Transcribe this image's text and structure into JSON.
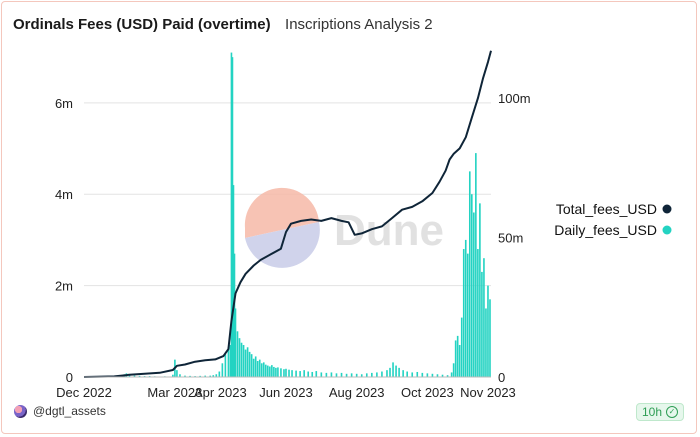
{
  "title": "Ordinals Fees (USD) Paid (overtime)",
  "subtitle": "Inscriptions Analysis 2",
  "user": "@dgtl_assets",
  "refresh": "10h",
  "watermark": "Dune",
  "colors": {
    "total": "#0f2538",
    "daily": "#23d3c2",
    "border": "#f4c7bd",
    "grid": "#e3e3e3",
    "watermark_circle_top": "#f6b9a8",
    "watermark_circle_bottom": "#c8cce8"
  },
  "chart_data": {
    "type": "bar+line",
    "x_tick_labels": [
      "Dec 2022",
      "Mar 2023",
      "Apr 2023",
      "Jun 2023",
      "Aug 2023",
      "Oct 2023",
      "Nov 2023"
    ],
    "x_tick_days": [
      0,
      90,
      135,
      200,
      270,
      340,
      400
    ],
    "x_range_days": [
      0,
      403
    ],
    "left_axis": {
      "ticks": [
        "0",
        "2m",
        "4m",
        "6m"
      ],
      "tick_values": [
        0,
        2000000,
        4000000,
        6000000
      ],
      "range": [
        0,
        7200000
      ]
    },
    "right_axis": {
      "ticks": [
        "0",
        "50m",
        "100m"
      ],
      "tick_values": [
        0,
        50000000,
        100000000
      ],
      "range": [
        0,
        118000000
      ]
    },
    "legend": [
      {
        "name": "Total_fees_USD",
        "color": "#0f2538"
      },
      {
        "name": "Daily_fees_USD",
        "color": "#23d3c2"
      }
    ],
    "series": [
      {
        "name": "Daily_fees_USD",
        "kind": "bar",
        "axis": "left",
        "points": [
          [
            30,
            20000
          ],
          [
            35,
            30000
          ],
          [
            40,
            60000
          ],
          [
            42,
            80000
          ],
          [
            45,
            40000
          ],
          [
            50,
            30000
          ],
          [
            55,
            25000
          ],
          [
            60,
            20000
          ],
          [
            65,
            20000
          ],
          [
            70,
            15000
          ],
          [
            80,
            15000
          ],
          [
            88,
            50000
          ],
          [
            90,
            380000
          ],
          [
            92,
            150000
          ],
          [
            95,
            60000
          ],
          [
            100,
            30000
          ],
          [
            105,
            25000
          ],
          [
            110,
            20000
          ],
          [
            115,
            25000
          ],
          [
            120,
            30000
          ],
          [
            125,
            30000
          ],
          [
            128,
            40000
          ],
          [
            131,
            60000
          ],
          [
            134,
            120000
          ],
          [
            137,
            300000
          ],
          [
            140,
            500000
          ],
          [
            143,
            650000
          ],
          [
            145,
            700000
          ],
          [
            146,
            7100000
          ],
          [
            147,
            7000000
          ],
          [
            148,
            4200000
          ],
          [
            149,
            2700000
          ],
          [
            150,
            1500000
          ],
          [
            152,
            1000000
          ],
          [
            154,
            850000
          ],
          [
            156,
            750000
          ],
          [
            158,
            700000
          ],
          [
            160,
            600000
          ],
          [
            162,
            650000
          ],
          [
            164,
            550000
          ],
          [
            166,
            500000
          ],
          [
            168,
            400000
          ],
          [
            170,
            450000
          ],
          [
            172,
            350000
          ],
          [
            174,
            380000
          ],
          [
            176,
            300000
          ],
          [
            178,
            320000
          ],
          [
            180,
            270000
          ],
          [
            182,
            250000
          ],
          [
            184,
            230000
          ],
          [
            186,
            260000
          ],
          [
            188,
            220000
          ],
          [
            190,
            200000
          ],
          [
            192,
            210000
          ],
          [
            195,
            190000
          ],
          [
            198,
            170000
          ],
          [
            200,
            180000
          ],
          [
            203,
            160000
          ],
          [
            206,
            150000
          ],
          [
            210,
            140000
          ],
          [
            214,
            130000
          ],
          [
            218,
            150000
          ],
          [
            222,
            120000
          ],
          [
            226,
            110000
          ],
          [
            230,
            130000
          ],
          [
            235,
            100000
          ],
          [
            240,
            90000
          ],
          [
            245,
            100000
          ],
          [
            250,
            80000
          ],
          [
            255,
            90000
          ],
          [
            260,
            70000
          ],
          [
            265,
            80000
          ],
          [
            270,
            70000
          ],
          [
            275,
            60000
          ],
          [
            280,
            80000
          ],
          [
            285,
            90000
          ],
          [
            290,
            100000
          ],
          [
            295,
            120000
          ],
          [
            300,
            150000
          ],
          [
            303,
            200000
          ],
          [
            306,
            320000
          ],
          [
            309,
            250000
          ],
          [
            312,
            200000
          ],
          [
            316,
            150000
          ],
          [
            320,
            120000
          ],
          [
            325,
            100000
          ],
          [
            330,
            110000
          ],
          [
            335,
            90000
          ],
          [
            340,
            80000
          ],
          [
            345,
            70000
          ],
          [
            350,
            60000
          ],
          [
            355,
            50000
          ],
          [
            360,
            40000
          ],
          [
            364,
            100000
          ],
          [
            366,
            300000
          ],
          [
            368,
            800000
          ],
          [
            370,
            900000
          ],
          [
            372,
            700000
          ],
          [
            374,
            1300000
          ],
          [
            376,
            2800000
          ],
          [
            378,
            3000000
          ],
          [
            380,
            2700000
          ],
          [
            382,
            4500000
          ],
          [
            384,
            4000000
          ],
          [
            386,
            3600000
          ],
          [
            388,
            4900000
          ],
          [
            390,
            2800000
          ],
          [
            392,
            3800000
          ],
          [
            394,
            2300000
          ],
          [
            396,
            2600000
          ],
          [
            398,
            1500000
          ],
          [
            400,
            2000000
          ],
          [
            402,
            1700000
          ]
        ]
      },
      {
        "name": "Total_fees_USD",
        "kind": "line",
        "axis": "right",
        "points": [
          [
            0,
            0
          ],
          [
            30,
            200000
          ],
          [
            45,
            800000
          ],
          [
            60,
            1200000
          ],
          [
            75,
            1500000
          ],
          [
            88,
            2500000
          ],
          [
            92,
            4000000
          ],
          [
            100,
            4500000
          ],
          [
            110,
            5500000
          ],
          [
            120,
            6000000
          ],
          [
            130,
            6300000
          ],
          [
            138,
            7500000
          ],
          [
            143,
            10000000
          ],
          [
            146,
            20000000
          ],
          [
            150,
            30000000
          ],
          [
            155,
            34000000
          ],
          [
            160,
            37000000
          ],
          [
            168,
            40000000
          ],
          [
            175,
            42000000
          ],
          [
            185,
            44000000
          ],
          [
            195,
            46000000
          ],
          [
            200,
            52000000
          ],
          [
            205,
            55000000
          ],
          [
            215,
            56000000
          ],
          [
            225,
            56500000
          ],
          [
            235,
            56000000
          ],
          [
            245,
            57000000
          ],
          [
            255,
            56000000
          ],
          [
            262,
            55500000
          ],
          [
            268,
            51000000
          ],
          [
            275,
            51500000
          ],
          [
            285,
            53000000
          ],
          [
            295,
            54000000
          ],
          [
            305,
            57000000
          ],
          [
            315,
            60000000
          ],
          [
            325,
            61000000
          ],
          [
            335,
            63000000
          ],
          [
            345,
            66000000
          ],
          [
            352,
            70000000
          ],
          [
            358,
            74000000
          ],
          [
            362,
            78000000
          ],
          [
            366,
            80000000
          ],
          [
            372,
            82000000
          ],
          [
            378,
            86000000
          ],
          [
            384,
            93000000
          ],
          [
            390,
            100000000
          ],
          [
            395,
            107000000
          ],
          [
            400,
            113000000
          ],
          [
            403,
            117000000
          ]
        ]
      }
    ]
  }
}
